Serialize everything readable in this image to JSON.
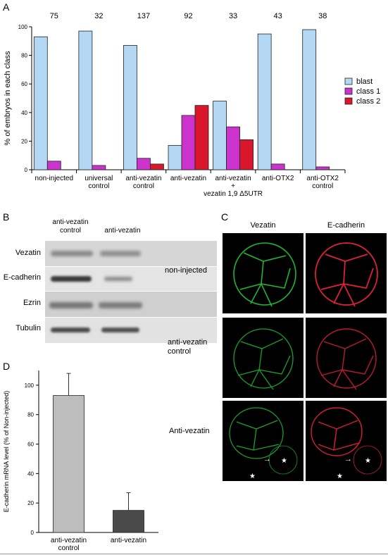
{
  "panels": {
    "a": {
      "letter": "A"
    },
    "b": {
      "letter": "B",
      "col_headers": [
        "anti-vezatin\ncontrol",
        "anti-vezatin"
      ],
      "rows": [
        "Vezatin",
        "E-cadherin",
        "Ezrin",
        "Tubulin"
      ]
    },
    "c": {
      "letter": "C",
      "col_headers": [
        "Vezatin",
        "E-cadherin"
      ],
      "rows": [
        "non-injected",
        "anti-vezatin\ncontrol",
        "Anti-vezatin"
      ],
      "colors": {
        "vezatin": "#22c93a",
        "ecadherin": "#e8243a"
      }
    },
    "d": {
      "letter": "D"
    }
  },
  "chart_data": [
    {
      "type": "bar",
      "ylabel": "% of embryos in each class",
      "ylim": [
        0,
        100
      ],
      "yticks": [
        0,
        20,
        40,
        60,
        80,
        100
      ],
      "categories": [
        "non-injected",
        "universal\ncontrol",
        "anti-vezatin\ncontrol",
        "anti-vezatin",
        "anti-vezatin\n+\nvezatin 1,9 Δ5UTR",
        "anti-OTX2",
        "anti-OTX2\ncontrol"
      ],
      "n_labels": [
        "75",
        "32",
        "137",
        "92",
        "33",
        "43",
        "38"
      ],
      "series": [
        {
          "name": "blast",
          "color": "#b4d8f4",
          "values": [
            93,
            97,
            87,
            17,
            48,
            95,
            98
          ]
        },
        {
          "name": "class 1",
          "color": "#cc33cc",
          "values": [
            6,
            3,
            8,
            38,
            30,
            4,
            2
          ]
        },
        {
          "name": "class 2",
          "color": "#d9162b",
          "values": [
            0,
            0,
            4,
            45,
            21,
            0,
            0
          ]
        }
      ],
      "legend": "right"
    },
    {
      "type": "bar",
      "ylabel": "E-cadherin mRNA level (% of Non-injected)",
      "ylim": [
        0,
        110
      ],
      "yticks": [
        0,
        20,
        40,
        60,
        80,
        100
      ],
      "categories": [
        "anti-vezatin\ncontrol",
        "anti-vezatin"
      ],
      "values": [
        93,
        15
      ],
      "errors": [
        15,
        12
      ],
      "colors": [
        "#bdbdbd",
        "#4a4a4a"
      ]
    }
  ]
}
